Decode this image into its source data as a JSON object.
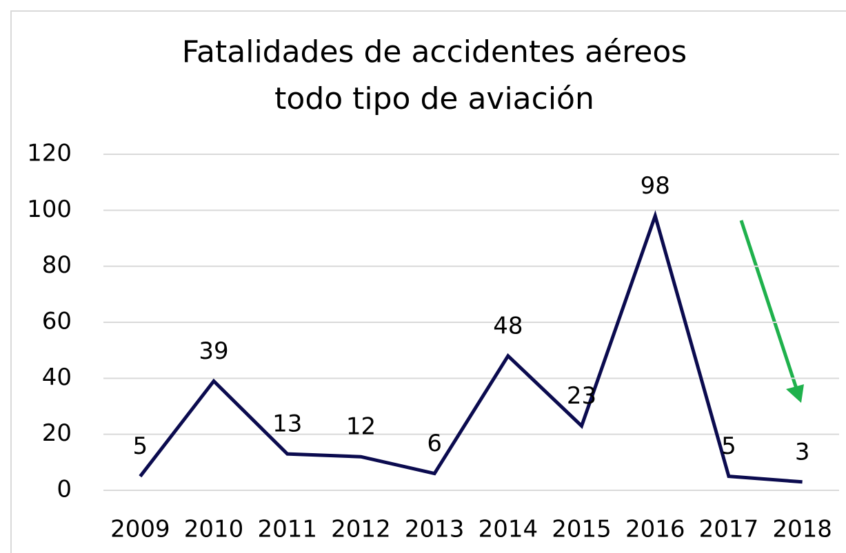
{
  "chart_data": {
    "type": "line",
    "title": [
      "Fatalidades de accidentes aéreos",
      "todo tipo de aviación"
    ],
    "categories": [
      "2009",
      "2010",
      "2011",
      "2012",
      "2013",
      "2014",
      "2015",
      "2016",
      "2017",
      "2018"
    ],
    "values": [
      5,
      39,
      13,
      12,
      6,
      48,
      23,
      98,
      5,
      3
    ],
    "color": "#0b0b4f",
    "ylim": [
      0,
      120
    ],
    "yticks": [
      0,
      20,
      40,
      60,
      80,
      100,
      120
    ],
    "grid": true,
    "data_labels": true
  }
}
